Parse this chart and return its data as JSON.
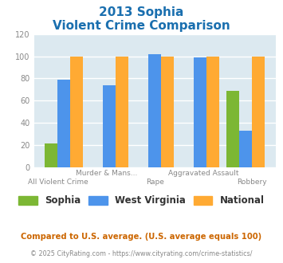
{
  "title_line1": "2013 Sophia",
  "title_line2": "Violent Crime Comparison",
  "title_color": "#1a6faf",
  "categories": [
    "All Violent Crime",
    "Murder & Mans...",
    "Rape",
    "Aggravated Assault",
    "Robbery"
  ],
  "sophia_values": [
    21,
    0,
    0,
    0,
    69
  ],
  "wv_values": [
    79,
    74,
    102,
    99,
    33
  ],
  "national_values": [
    100,
    100,
    100,
    100,
    100
  ],
  "sophia_color": "#7cb734",
  "wv_color": "#4d94eb",
  "national_color": "#ffaa33",
  "ylim": [
    0,
    120
  ],
  "yticks": [
    0,
    20,
    40,
    60,
    80,
    100,
    120
  ],
  "legend_labels": [
    "Sophia",
    "West Virginia",
    "National"
  ],
  "footnote1": "Compared to U.S. average. (U.S. average equals 100)",
  "footnote2": "© 2025 CityRating.com - https://www.cityrating.com/crime-statistics/",
  "footnote1_color": "#cc6600",
  "footnote2_color": "#888888",
  "plot_bg_color": "#dce9f0",
  "tick_label_color": "#888888",
  "grid_color": "#ffffff",
  "top_labels": {
    "1": "Murder & Mans...",
    "3": "Aggravated Assault"
  },
  "bot_labels": {
    "0": "All Violent Crime",
    "2": "Rape",
    "4": "Robbery"
  }
}
